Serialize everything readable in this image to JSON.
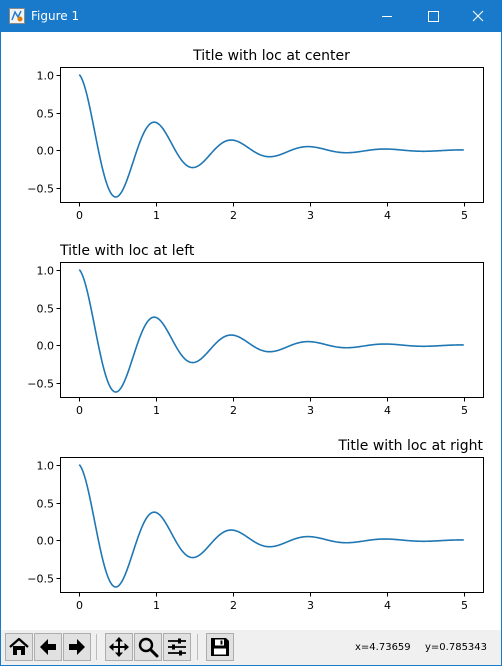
{
  "window": {
    "title": "Figure 1",
    "titlebar_color": "#1979ca",
    "controls": [
      "minimize-icon",
      "maximize-icon",
      "close-icon"
    ]
  },
  "figure": {
    "line_color": "#1f77b4",
    "axes": [
      {
        "title": "Title with loc at center",
        "title_loc": "center"
      },
      {
        "title": "Title with loc at left",
        "title_loc": "left"
      },
      {
        "title": "Title with loc at right",
        "title_loc": "right"
      }
    ]
  },
  "chart_data": [
    {
      "type": "line",
      "title": "Title with loc at center",
      "xlabel": "",
      "ylabel": "",
      "xlim": [
        -0.25,
        5.25
      ],
      "ylim": [
        -0.68,
        1.1
      ],
      "xticks": [
        "0",
        "1",
        "2",
        "3",
        "4",
        "5"
      ],
      "yticks": [
        "1.0",
        "0.5",
        "0.0",
        "−0.5"
      ],
      "xtick_values": [
        0,
        1,
        2,
        3,
        4,
        5
      ],
      "ytick_values": [
        1.0,
        0.5,
        0.0,
        -0.5
      ],
      "function": "y = cos(2*pi*x) * exp(-x)",
      "x_range": [
        0,
        5
      ],
      "grid": false
    },
    {
      "type": "line",
      "title": "Title with loc at left",
      "xlabel": "",
      "ylabel": "",
      "xlim": [
        -0.25,
        5.25
      ],
      "ylim": [
        -0.68,
        1.1
      ],
      "xticks": [
        "0",
        "1",
        "2",
        "3",
        "4",
        "5"
      ],
      "yticks": [
        "1.0",
        "0.5",
        "0.0",
        "−0.5"
      ],
      "xtick_values": [
        0,
        1,
        2,
        3,
        4,
        5
      ],
      "ytick_values": [
        1.0,
        0.5,
        0.0,
        -0.5
      ],
      "function": "y = cos(2*pi*x) * exp(-x)",
      "x_range": [
        0,
        5
      ],
      "grid": false
    },
    {
      "type": "line",
      "title": "Title with loc at right",
      "xlabel": "",
      "ylabel": "",
      "xlim": [
        -0.25,
        5.25
      ],
      "ylim": [
        -0.68,
        1.1
      ],
      "xticks": [
        "0",
        "1",
        "2",
        "3",
        "4",
        "5"
      ],
      "yticks": [
        "1.0",
        "0.5",
        "0.0",
        "−0.5"
      ],
      "xtick_values": [
        0,
        1,
        2,
        3,
        4,
        5
      ],
      "ytick_values": [
        1.0,
        0.5,
        0.0,
        -0.5
      ],
      "function": "y = cos(2*pi*x) * exp(-x)",
      "x_range": [
        0,
        5
      ],
      "grid": false
    }
  ],
  "toolbar": {
    "buttons": [
      "home-icon",
      "back-icon",
      "forward-icon",
      "pan-icon",
      "zoom-icon",
      "subplots-icon",
      "save-icon"
    ],
    "coords_x": "x=4.73659",
    "coords_y": "y=0.785343"
  }
}
